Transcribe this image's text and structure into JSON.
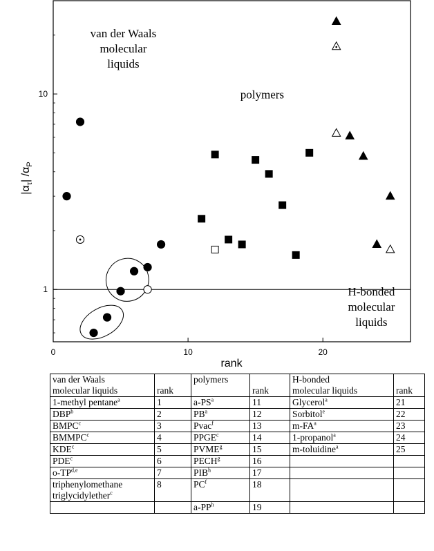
{
  "chart_data": {
    "type": "scatter",
    "xlabel": "rank",
    "ylabel_main": "|α",
    "ylabel_sub1": "τ",
    "ylabel_mid": "| /α",
    "ylabel_sub2": "P",
    "xlim": [
      0,
      26.5
    ],
    "ylim": [
      0.54,
      30
    ],
    "y_scale": "log",
    "x_ticks": [
      {
        "value": 0,
        "label": "0"
      },
      {
        "value": 10,
        "label": "10"
      },
      {
        "value": 20,
        "label": "20"
      }
    ],
    "y_ticks": [
      {
        "value": 1,
        "label": "1"
      },
      {
        "value": 10,
        "label": "10"
      }
    ],
    "reference_line_y": 1,
    "annotations": [
      {
        "lines": [
          "van der Waals",
          "molecular",
          "liquids"
        ],
        "x": 5.2,
        "y": 19.5
      },
      {
        "lines": [
          "polymers"
        ],
        "x": 15.5,
        "y": 9.5
      },
      {
        "lines": [
          "H-bonded",
          "molecular",
          "liquids"
        ],
        "x": 23.6,
        "y": 0.93
      }
    ],
    "ellipses": [
      {
        "cx": 3.6,
        "cy": 0.68,
        "rx": 1.75,
        "ry_top": 0.8,
        "ry_bottom": 0.575,
        "angle": -30
      },
      {
        "cx": 5.5,
        "cy": 1.12,
        "rx": 1.6,
        "ry_top": 1.45,
        "ry_bottom": 0.88,
        "angle": -58
      }
    ],
    "points": [
      {
        "x": 1,
        "y": 3.0,
        "marker": "circle-filled"
      },
      {
        "x": 2,
        "y": 7.2,
        "marker": "circle-filled"
      },
      {
        "x": 2,
        "y": 1.8,
        "marker": "circle-dotted"
      },
      {
        "x": 3,
        "y": 0.6,
        "marker": "circle-filled"
      },
      {
        "x": 4,
        "y": 0.72,
        "marker": "circle-filled"
      },
      {
        "x": 5,
        "y": 0.98,
        "marker": "circle-filled"
      },
      {
        "x": 6,
        "y": 1.24,
        "marker": "circle-filled"
      },
      {
        "x": 7,
        "y": 1.3,
        "marker": "circle-filled"
      },
      {
        "x": 7,
        "y": 1.0,
        "marker": "circle-open"
      },
      {
        "x": 8,
        "y": 1.7,
        "marker": "circle-filled"
      },
      {
        "x": 11,
        "y": 2.3,
        "marker": "square-filled"
      },
      {
        "x": 12,
        "y": 4.9,
        "marker": "square-filled"
      },
      {
        "x": 12,
        "y": 1.6,
        "marker": "square-open"
      },
      {
        "x": 13,
        "y": 1.8,
        "marker": "square-filled"
      },
      {
        "x": 14,
        "y": 1.7,
        "marker": "square-filled"
      },
      {
        "x": 15,
        "y": 4.6,
        "marker": "square-filled"
      },
      {
        "x": 16,
        "y": 3.9,
        "marker": "square-filled"
      },
      {
        "x": 17,
        "y": 2.7,
        "marker": "square-filled"
      },
      {
        "x": 18,
        "y": 1.5,
        "marker": "square-filled"
      },
      {
        "x": 19,
        "y": 5.0,
        "marker": "square-filled"
      },
      {
        "x": 21,
        "y": 23.5,
        "marker": "triangle-filled"
      },
      {
        "x": 21,
        "y": 17.5,
        "marker": "triangle-dotted"
      },
      {
        "x": 21,
        "y": 6.3,
        "marker": "triangle-open"
      },
      {
        "x": 22,
        "y": 6.1,
        "marker": "triangle-filled"
      },
      {
        "x": 23,
        "y": 4.8,
        "marker": "triangle-filled"
      },
      {
        "x": 24,
        "y": 1.7,
        "marker": "triangle-filled"
      },
      {
        "x": 25,
        "y": 3.0,
        "marker": "triangle-filled"
      },
      {
        "x": 25,
        "y": 1.6,
        "marker": "triangle-open"
      }
    ]
  },
  "table": {
    "header": {
      "c1a": "van der Waals",
      "c1b": "molecular  liquids",
      "c2": "rank",
      "c3": "polymers",
      "c4": "rank",
      "c5a": "H-bonded",
      "c5b": "molecular liquids",
      "c6": "rank"
    },
    "rows": [
      {
        "a": "1-methyl pentane",
        "as": "a",
        "ar": "1",
        "b": "a-PS",
        "bs": "a",
        "br": "11",
        "c": "Glycerol",
        "cs": "a",
        "cr": "21"
      },
      {
        "a": "DBP",
        "as": "b",
        "ar": "2",
        "b": "PB",
        "bs": "a",
        "br": "12",
        "c": "Sorbitol",
        "cs": "e",
        "cr": "22"
      },
      {
        "a": "BMPC",
        "as": "c",
        "ar": "3",
        "b": "Pvac",
        "bs": "f",
        "br": "13",
        "c": "m-FA",
        "cs": "a",
        "cr": "23"
      },
      {
        "a": "BMMPC",
        "as": "c",
        "ar": "4",
        "b": "PPGE",
        "bs": "c",
        "br": "14",
        "c": "1-propanol",
        "cs": "a",
        "cr": "24"
      },
      {
        "a": "KDE",
        "as": "c",
        "ar": "5",
        "b": "PVME",
        "bs": "g",
        "br": "15",
        "c": "m-toluidine",
        "cs": "a",
        "cr": "25"
      },
      {
        "a": "PDE",
        "as": "c",
        "ar": "6",
        "b": "PECH",
        "bs": "g",
        "br": "16",
        "c": "",
        "cs": "",
        "cr": ""
      },
      {
        "a": "o-TP",
        "as": "d,e",
        "ar": "7",
        "b": "PIB",
        "bs": "h",
        "br": "17",
        "c": "",
        "cs": "",
        "cr": ""
      },
      {
        "a": "triphenylomethane",
        "a2": "triglycidylether",
        "as": "c",
        "ar": "8",
        "b": "PC",
        "bs": "f",
        "br": "18",
        "c": "",
        "cs": "",
        "cr": ""
      },
      {
        "a": "",
        "as": "",
        "ar": "",
        "b": "a-PP",
        "bs": "h",
        "br": "19",
        "c": "",
        "cs": "",
        "cr": ""
      }
    ]
  }
}
